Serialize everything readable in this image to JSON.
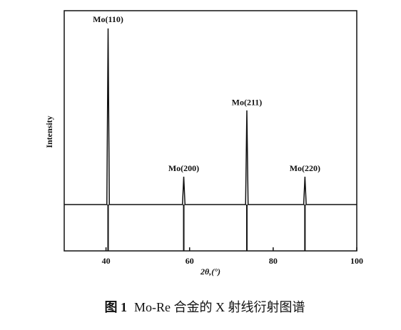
{
  "chart_data": {
    "type": "line",
    "x_label": "2θ,(°)",
    "y_label": "Intensity",
    "xlim": [
      30,
      100
    ],
    "ylim": [
      0,
      100
    ],
    "xticks": [
      40,
      60,
      80,
      100
    ],
    "series": [
      {
        "color": "#111111",
        "x": [
          30,
          40.2,
          40.5,
          40.8,
          58.3,
          58.6,
          58.9,
          73.4,
          73.7,
          74.0,
          87.3,
          87.6,
          87.9,
          100
        ],
        "values": [
          19.3,
          19.3,
          92.6,
          19.3,
          19.3,
          30.9,
          19.3,
          19.3,
          58.5,
          19.3,
          19.3,
          30.9,
          19.3,
          19.3
        ]
      }
    ],
    "sticks": {
      "color": "#111111",
      "x": [
        40.5,
        58.6,
        73.7,
        87.6
      ],
      "values": [
        19.3,
        19.3,
        19.3,
        19.3
      ]
    },
    "annotations": [
      {
        "text": "Mo(110)",
        "x": 40.5,
        "y": 96
      },
      {
        "text": "Mo(200)",
        "x": 58.6,
        "y": 34
      },
      {
        "text": "Mo(211)",
        "x": 73.7,
        "y": 61.5
      },
      {
        "text": "Mo(220)",
        "x": 87.6,
        "y": 34
      }
    ]
  },
  "figure_label": "图 1",
  "caption": "Mo-Re 合金的 X 射线衍射图谱"
}
